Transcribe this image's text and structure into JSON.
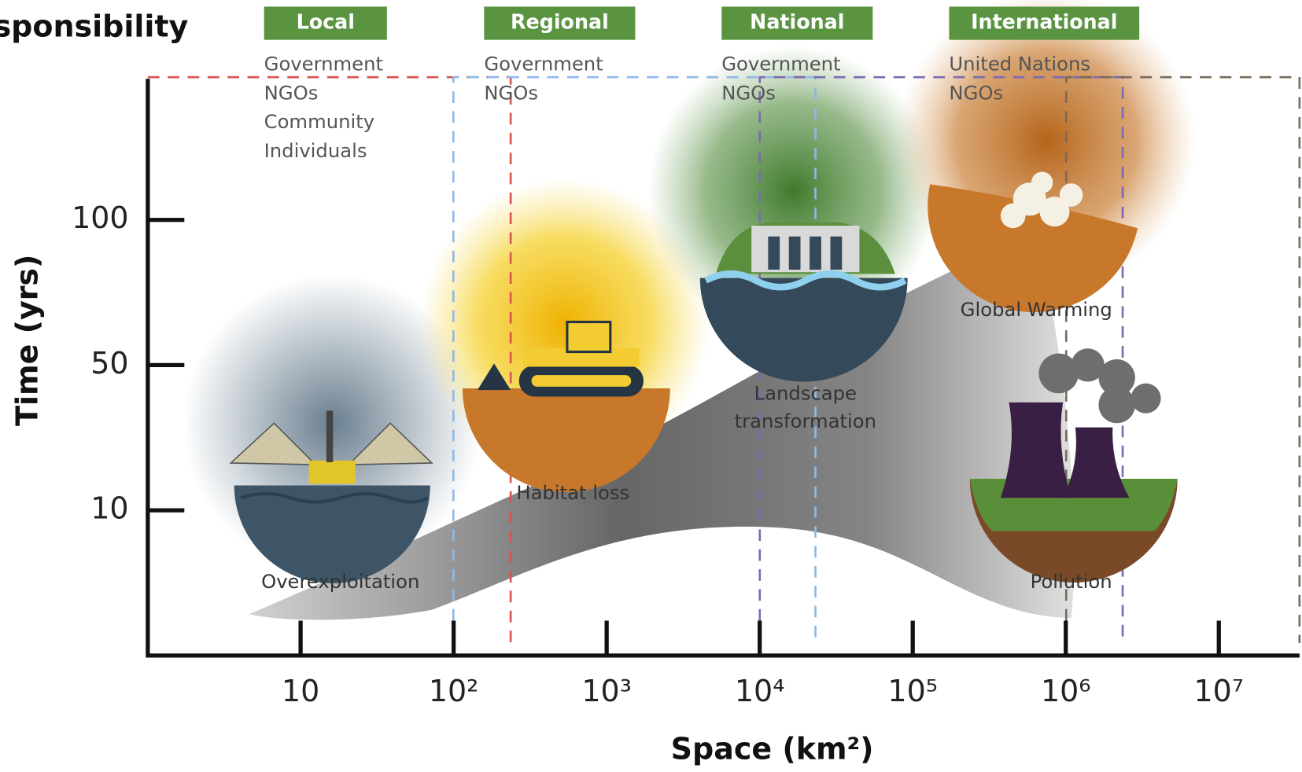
{
  "title": "sponsibility",
  "levels": [
    {
      "name": "Local",
      "actors": [
        "Government",
        "NGOs",
        "Community",
        "Individuals"
      ]
    },
    {
      "name": "Regional",
      "actors": [
        "Government",
        "NGOs"
      ]
    },
    {
      "name": "National",
      "actors": [
        "Government",
        "NGOs"
      ]
    },
    {
      "name": "International",
      "actors": [
        "United Nations",
        "NGOs"
      ]
    }
  ],
  "y_axis": {
    "title": "Time (yrs)",
    "ticks": [
      "100",
      "50",
      "10"
    ]
  },
  "x_axis": {
    "title": "Space (km²)",
    "ticks": [
      "10",
      "10²",
      "10³",
      "10⁴",
      "10⁵",
      "10⁶",
      "10⁷"
    ]
  },
  "threats": [
    {
      "lines": [
        "Overexploitation"
      ]
    },
    {
      "lines": [
        "Habitat loss"
      ]
    },
    {
      "lines": [
        "Landscape",
        "transformation"
      ]
    },
    {
      "lines": [
        "Global Warming"
      ]
    },
    {
      "lines": [
        "Pollution"
      ]
    }
  ]
}
